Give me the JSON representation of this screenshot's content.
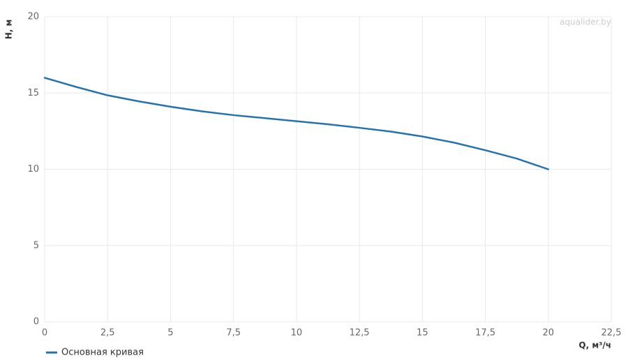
{
  "chart_data": {
    "type": "line",
    "x_label": "Q, м³/ч",
    "y_label": "H, м",
    "watermark": "aqualider.by",
    "x": [
      0,
      1.25,
      2.5,
      3.75,
      5,
      6.25,
      7.5,
      8.75,
      10,
      11.25,
      12.5,
      13.75,
      15,
      16.25,
      17.5,
      18.75,
      20
    ],
    "series": [
      {
        "name": "Основная кривая",
        "color": "#2573ad",
        "values": [
          16,
          15.4,
          14.85,
          14.45,
          14.1,
          13.8,
          13.55,
          13.35,
          13.15,
          12.95,
          12.72,
          12.47,
          12.15,
          11.75,
          11.25,
          10.7,
          10
        ]
      }
    ],
    "xlim": [
      0,
      22.5
    ],
    "xticks": [
      0,
      {
        "value": 2.5,
        "label": "2,5"
      },
      5,
      {
        "value": 7.5,
        "label": "7,5"
      },
      10,
      {
        "value": 12.5,
        "label": "12,5"
      },
      15,
      {
        "value": 17.5,
        "label": "17,5"
      },
      20,
      {
        "value": 22.5,
        "label": "22,5"
      }
    ],
    "ylim": [
      0,
      20
    ],
    "yticks": [
      0,
      5,
      10,
      15,
      20
    ],
    "grid": true,
    "legend": "bottom-left"
  }
}
